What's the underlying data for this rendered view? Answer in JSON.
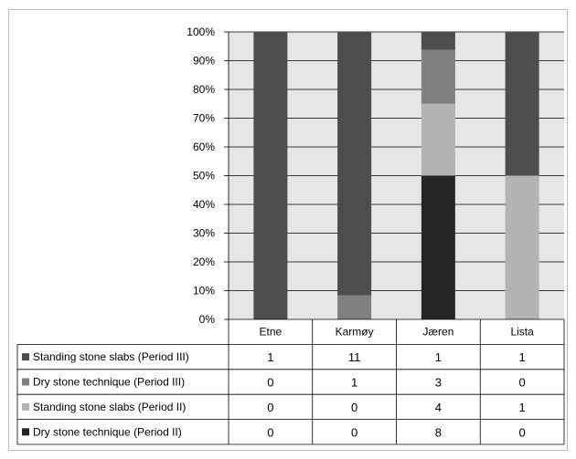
{
  "chart_data": {
    "type": "bar",
    "stacked": "percent",
    "categories": [
      "Etne",
      "Karmøy",
      "Jæren",
      "Lista"
    ],
    "series": [
      {
        "name": "Standing stone slabs (Period III)",
        "values": [
          1,
          11,
          1,
          1
        ],
        "color": "#4d4d4d"
      },
      {
        "name": "Dry stone technique (Period III)",
        "values": [
          0,
          1,
          3,
          0
        ],
        "color": "#808080"
      },
      {
        "name": "Standing stone slabs (Period II)",
        "values": [
          0,
          0,
          4,
          1
        ],
        "color": "#b3b3b3"
      },
      {
        "name": "Dry stone technique (Period II)",
        "values": [
          0,
          0,
          8,
          0
        ],
        "color": "#262626"
      }
    ],
    "y_ticks": [
      "0%",
      "10%",
      "20%",
      "30%",
      "40%",
      "50%",
      "60%",
      "70%",
      "80%",
      "90%",
      "100%"
    ],
    "ylim": [
      0,
      100
    ],
    "grid": true,
    "plot_background": "#e6e6e6",
    "data_table": true
  }
}
